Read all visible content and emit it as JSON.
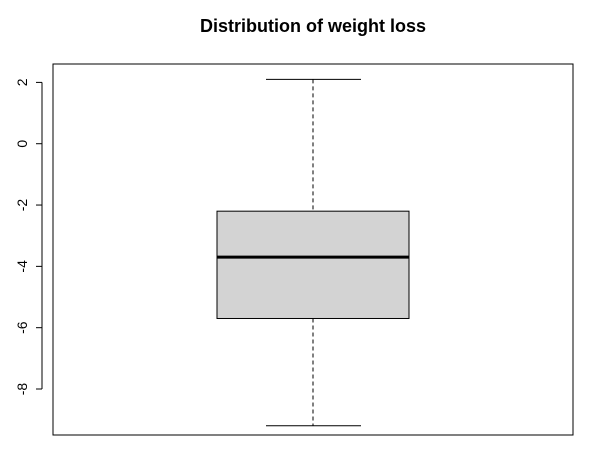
{
  "chart_data": {
    "type": "boxplot",
    "title": "Distribution of weight loss",
    "xlabel": "",
    "ylabel": "",
    "ylim": [
      -9.5,
      2.6
    ],
    "yticks": [
      2,
      0,
      -2,
      -4,
      -6,
      -8
    ],
    "grid": false,
    "legend": "none",
    "box": {
      "whisker_low": -9.2,
      "q1": -5.7,
      "median": -3.7,
      "q3": -2.2,
      "whisker_high": 2.1
    },
    "colors": {
      "box_fill": "#d3d3d3",
      "stroke": "#000000",
      "background": "#ffffff"
    }
  }
}
